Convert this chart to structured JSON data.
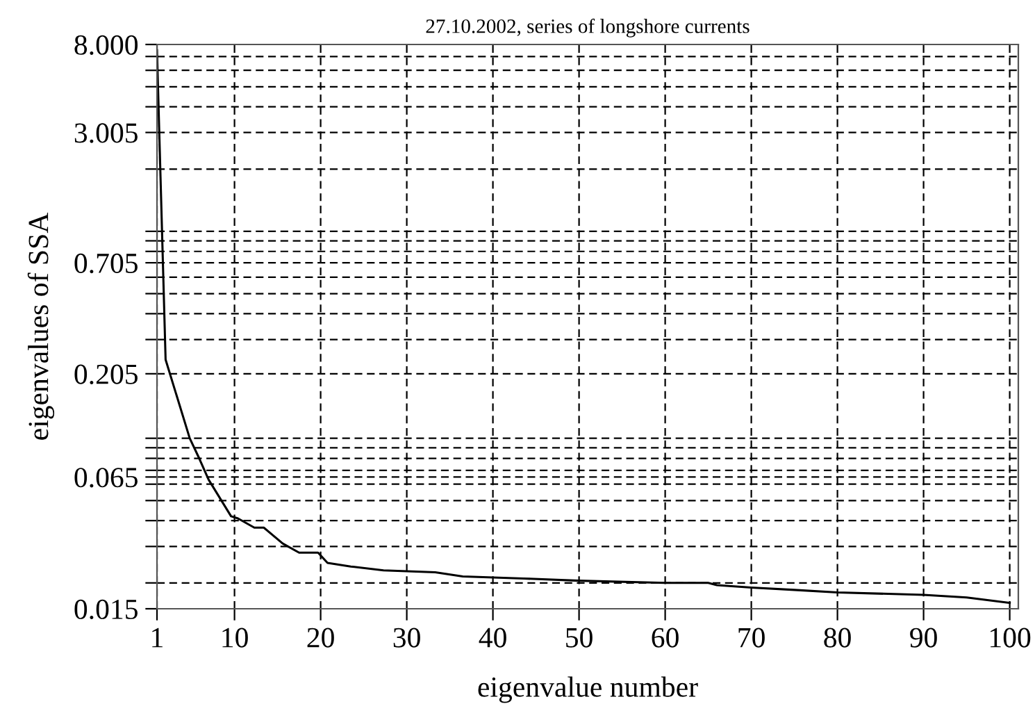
{
  "chart_data": {
    "type": "line",
    "title": "27.10.2002, series of longshore currents",
    "xlabel": "eigenvalue number",
    "ylabel": "eigenvalues of SSA",
    "x": [
      1,
      2,
      4.8,
      5.9,
      7,
      9.6,
      10.4,
      12.3,
      13.4,
      15.6,
      17.5,
      19.7,
      20.8,
      23.5,
      27.3,
      33.3,
      36.5,
      43.6,
      50,
      60,
      65,
      66,
      70,
      75,
      80,
      90,
      95,
      100
    ],
    "series": [
      {
        "color": "#000000",
        "values": [
          7.5,
          0.24,
          0.1,
          0.08,
          0.063,
          0.042,
          0.041,
          0.037,
          0.037,
          0.031,
          0.028,
          0.028,
          0.025,
          0.024,
          0.023,
          0.0225,
          0.0215,
          0.021,
          0.0205,
          0.02,
          0.02,
          0.0195,
          0.019,
          0.0185,
          0.018,
          0.0175,
          0.017,
          0.016
        ]
      }
    ],
    "log": "y",
    "xlim": [
      1,
      101
    ],
    "ylim": [
      0.015,
      8
    ],
    "xticks": [
      1,
      10,
      20,
      30,
      40,
      50,
      60,
      70,
      80,
      90,
      100
    ],
    "yticks": [
      {
        "value": 0.015,
        "label": "0.015"
      },
      {
        "value": 0.02,
        "label": null
      },
      {
        "value": 0.03,
        "label": null
      },
      {
        "value": 0.04,
        "label": null
      },
      {
        "value": 0.05,
        "label": null
      },
      {
        "value": 0.06,
        "label": null
      },
      {
        "value": 0.065,
        "label": "0.065"
      },
      {
        "value": 0.07,
        "label": null
      },
      {
        "value": 0.08,
        "label": null
      },
      {
        "value": 0.09,
        "label": null
      },
      {
        "value": 0.1,
        "label": null
      },
      {
        "value": 0.205,
        "label": "0.205"
      },
      {
        "value": 0.3,
        "label": null
      },
      {
        "value": 0.4,
        "label": null
      },
      {
        "value": 0.5,
        "label": null
      },
      {
        "value": 0.6,
        "label": null
      },
      {
        "value": 0.705,
        "label": "0.705"
      },
      {
        "value": 0.8,
        "label": null
      },
      {
        "value": 0.9,
        "label": null
      },
      {
        "value": 1,
        "label": null
      },
      {
        "value": 2,
        "label": null
      },
      {
        "value": 3.005,
        "label": "3.005"
      },
      {
        "value": 4,
        "label": null
      },
      {
        "value": 5,
        "label": null
      },
      {
        "value": 6,
        "label": null
      },
      {
        "value": 7,
        "label": null
      },
      {
        "value": 8,
        "label": "8.000"
      }
    ],
    "grid": true,
    "line_style": "solid",
    "marker": "none",
    "legend": false
  }
}
